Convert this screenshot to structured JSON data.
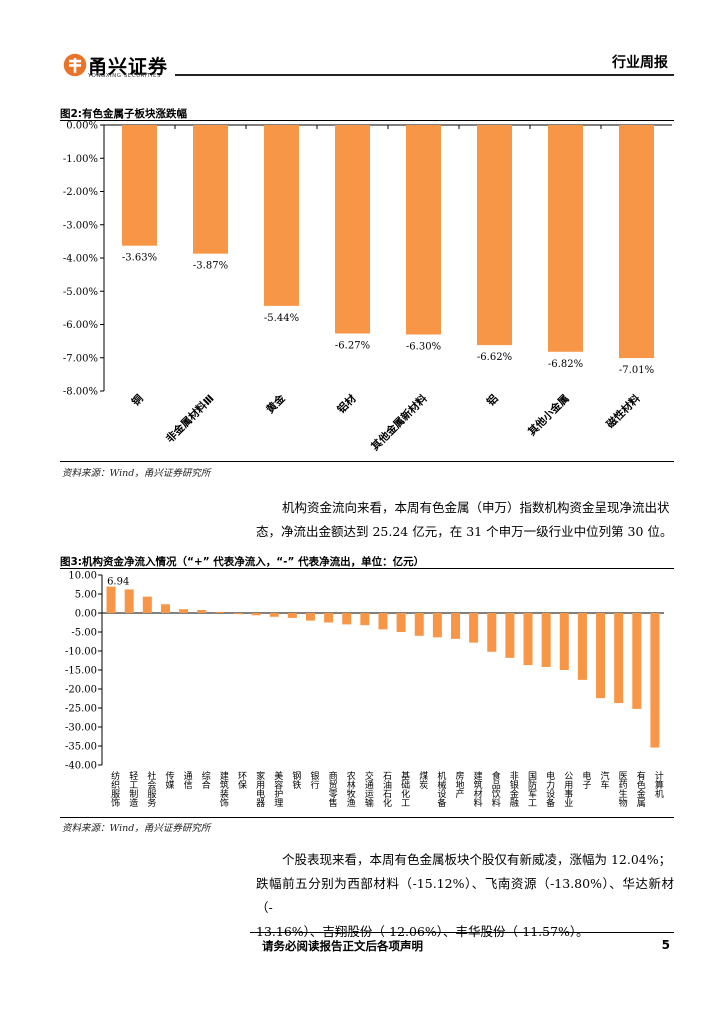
{
  "header": {
    "logo_text": "甬兴证券",
    "logo_sub": "YONGXING SECURITIES",
    "report_type": "行业周报"
  },
  "figure2": {
    "title": "图2:有色金属子板块涨跌幅",
    "source": "资料来源：Wind，甬兴证券研究所"
  },
  "paragraph1": {
    "line1": "机构资金流向来看，本周有色金属（申万）指数机构资金呈现净流出状",
    "line2": "态，净流出金额达到 25.24 亿元，在 31 个申万一级行业中位列第 30 位。"
  },
  "figure3": {
    "title": "图3:机构资金净流入情况（“+” 代表净流入，“-” 代表净流出，单位：亿元）",
    "source": "资料来源：Wind，甬兴证券研究所"
  },
  "paragraph2": {
    "line1": "个股表现来看，本周有色金属板块个股仅有新威凌，涨幅为 12.04%；",
    "line2": "跌幅前五分别为西部材料（-15.12%）、飞南资源（-13.80%）、华达新材（-",
    "line3": "13.16%）、吉翔股份（-12.06%）、丰华股份（-11.57%）。"
  },
  "footer": {
    "note": "请务必阅读报告正文后各项声明",
    "page": "5"
  },
  "colors": {
    "bar": "#F79646",
    "axis": "#000000"
  },
  "chart_data": [
    {
      "type": "bar",
      "title": "有色金属子板块涨跌幅",
      "categories": [
        "铜",
        "非金属材料Ⅲ",
        "黄金",
        "铝材",
        "其他金属新材料",
        "铝",
        "其他小金属",
        "磁性材料"
      ],
      "values": [
        -3.63,
        -3.87,
        -5.44,
        -6.27,
        -6.3,
        -6.62,
        -6.82,
        -7.01
      ],
      "data_labels": [
        "-3.63%",
        "-3.87%",
        "-5.44%",
        "-6.27%",
        "-6.30%",
        "-6.62%",
        "-6.82%",
        "-7.01%"
      ],
      "y_ticks": [
        "0.00%",
        "-1.00%",
        "-2.00%",
        "-3.00%",
        "-4.00%",
        "-5.00%",
        "-6.00%",
        "-7.00%",
        "-8.00%"
      ],
      "ylim": [
        -8,
        0
      ],
      "unit": "%"
    },
    {
      "type": "bar",
      "title": "机构资金净流入情况（亿元）",
      "categories": [
        "纺织服饰",
        "轻工制造",
        "社会服务",
        "传媒",
        "通信",
        "综合",
        "建筑装饰",
        "环保",
        "家用电器",
        "美容护理",
        "钢铁",
        "银行",
        "商贸零售",
        "农林牧渔",
        "交通运输",
        "石油石化",
        "基础化工",
        "煤炭",
        "机械设备",
        "房地产",
        "建筑材料",
        "食品饮料",
        "非银金融",
        "国防军工",
        "电力设备",
        "公用事业",
        "电子",
        "汽车",
        "医药生物",
        "有色金属",
        "计算机"
      ],
      "values": [
        6.94,
        6.2,
        4.3,
        2.3,
        1.0,
        0.8,
        0.3,
        -0.3,
        -0.6,
        -1.0,
        -1.3,
        -2.0,
        -2.5,
        -3.0,
        -3.2,
        -4.3,
        -5.0,
        -6.0,
        -6.4,
        -6.8,
        -7.8,
        -10.2,
        -11.8,
        -13.7,
        -14.2,
        -15.0,
        -17.6,
        -22.4,
        -23.7,
        -25.24,
        -35.4
      ],
      "data_labels": [
        "6.94"
      ],
      "y_ticks": [
        "10.00",
        "5.00",
        "0.00",
        "-5.00",
        "-10.00",
        "-15.00",
        "-20.00",
        "-25.00",
        "-30.00",
        "-35.00",
        "-40.00"
      ],
      "ylim": [
        -40,
        10
      ],
      "unit": "亿元"
    }
  ]
}
